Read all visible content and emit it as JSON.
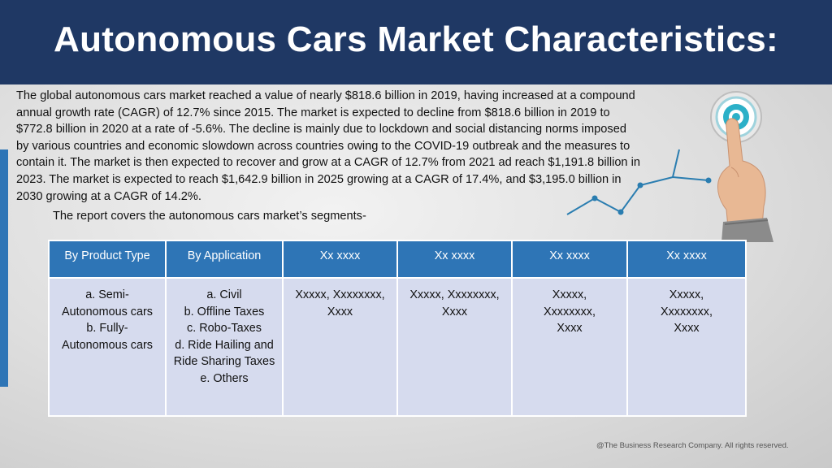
{
  "header": {
    "title": "Autonomous Cars Market Characteristics:"
  },
  "body": {
    "paragraph": "The global autonomous cars market reached a value of nearly $818.6 billion in 2019, having increased at a compound annual growth rate (CAGR) of 12.7% since 2015. The market is expected to decline from $818.6 billion in 2019 to $772.8 billion in 2020 at a rate of -5.6%. The decline is mainly due to lockdown and social distancing norms imposed by various countries and economic slowdown across countries owing to the COVID-19 outbreak and the measures to contain it. The market is then expected to recover and grow at a CAGR of 12.7% from 2021 ad reach $1,191.8 billion in 2023.  The market is expected to reach $1,642.9 billion in 2025 growing at a CAGR of 17.4%, and $3,195.0 billion in 2030 growing at a CAGR of 14.2%.",
    "segments_intro": "The report covers the autonomous cars market’s segments-"
  },
  "table": {
    "headers": [
      "By Product Type",
      "By Application",
      "Xx xxxx",
      "Xx xxxx",
      "Xx xxxx",
      "Xx xxxx"
    ],
    "cells": [
      [
        "a. Semi-",
        "Autonomous cars",
        "b. Fully-",
        "Autonomous cars"
      ],
      [
        "a. Civil",
        "b. Offline Taxes",
        "c. Robo-Taxes",
        "d. Ride Hailing and",
        "Ride Sharing Taxes",
        "e. Others"
      ],
      [
        "Xxxxx, Xxxxxxxx,",
        "Xxxx"
      ],
      [
        "Xxxxx, Xxxxxxxx,",
        "Xxxx"
      ],
      [
        "Xxxxx,",
        "Xxxxxxxx,",
        "Xxxx"
      ],
      [
        "Xxxxx,",
        "Xxxxxxxx,",
        "Xxxx"
      ]
    ]
  },
  "footer": {
    "text": "@The Business Research Company. All rights reserved."
  },
  "colors": {
    "header_bg": "#1f3864",
    "table_header_bg": "#2e75b6",
    "table_cell_bg": "#d6dbee",
    "accent": "#2e75b6"
  },
  "icons": {
    "illustration": "hand-touching-target-growth-chart-icon"
  }
}
